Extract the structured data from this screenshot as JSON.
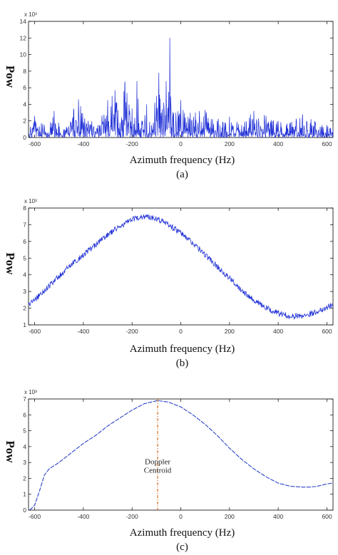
{
  "chart_data": [
    {
      "type": "line",
      "panel": "(a)",
      "xlabel": "Azimuth frequency (Hz)",
      "ylabel": "Pow",
      "y_exponent_label": "x 10³",
      "xlim": [
        -625,
        625
      ],
      "ylim": [
        0,
        14
      ],
      "xticks": [
        -600,
        -400,
        -200,
        0,
        200,
        400,
        600
      ],
      "yticks": [
        0,
        2,
        4,
        6,
        8,
        10,
        12,
        14
      ],
      "grid": false,
      "series": [
        {
          "color": "#1f2fd6",
          "description": "noisy spectrum, values approx.",
          "x": [
            -625,
            -600,
            -560,
            -520,
            -480,
            -440,
            -420,
            -380,
            -340,
            -300,
            -270,
            -250,
            -230,
            -200,
            -180,
            -160,
            -140,
            -120,
            -100,
            -90,
            -80,
            -70,
            -60,
            -50,
            -45,
            -40,
            -20,
            0,
            30,
            60,
            100,
            150,
            200,
            250,
            300,
            350,
            400,
            450,
            500,
            550,
            600,
            625
          ],
          "y": [
            0.5,
            2.6,
            1.5,
            3.2,
            1.0,
            3.5,
            4.6,
            2.0,
            1.5,
            4.5,
            5.7,
            1.8,
            6.5,
            3.5,
            6.8,
            2.0,
            4.0,
            1.5,
            5.0,
            7.8,
            3.0,
            4.2,
            6.8,
            5.5,
            12.0,
            3.5,
            3.0,
            4.5,
            2.5,
            3.0,
            3.3,
            2.0,
            2.5,
            1.5,
            3.2,
            2.6,
            2.0,
            1.8,
            2.8,
            2.0,
            1.5,
            1.0
          ]
        }
      ]
    },
    {
      "type": "line",
      "panel": "(b)",
      "xlabel": "Azimuth frequency (Hz)",
      "ylabel": "Pow",
      "y_exponent_label": "x 10³",
      "xlim": [
        -625,
        625
      ],
      "ylim": [
        1,
        8
      ],
      "xticks": [
        -600,
        -400,
        -200,
        0,
        200,
        400,
        600
      ],
      "yticks": [
        1,
        2,
        3,
        4,
        5,
        6,
        7,
        8
      ],
      "grid": false,
      "series": [
        {
          "color": "#1f2fd6",
          "x": [
            -625,
            -600,
            -550,
            -500,
            -450,
            -400,
            -350,
            -300,
            -250,
            -200,
            -150,
            -100,
            -50,
            0,
            50,
            100,
            150,
            200,
            250,
            300,
            350,
            400,
            450,
            500,
            550,
            600,
            625
          ],
          "y": [
            2.2,
            2.5,
            3.2,
            3.9,
            4.6,
            5.2,
            5.8,
            6.4,
            6.9,
            7.3,
            7.5,
            7.4,
            7.0,
            6.5,
            5.9,
            5.2,
            4.5,
            3.8,
            3.1,
            2.5,
            2.0,
            1.7,
            1.5,
            1.55,
            1.75,
            2.05,
            2.2
          ]
        }
      ]
    },
    {
      "type": "line",
      "panel": "(c)",
      "xlabel": "Azimuth frequency (Hz)",
      "ylabel": "Pow",
      "y_exponent_label": "x 10³",
      "xlim": [
        -625,
        625
      ],
      "ylim": [
        0,
        7
      ],
      "xticks": [
        -600,
        -400,
        -200,
        0,
        200,
        400,
        600
      ],
      "yticks": [
        0,
        1,
        2,
        3,
        4,
        5,
        6,
        7
      ],
      "grid": false,
      "annotation": {
        "text_lines": [
          "Doppler",
          "Centroid"
        ],
        "x": -95,
        "line_color": "#d2691e"
      },
      "series": [
        {
          "color": "#2a44c8",
          "x": [
            -620,
            -600,
            -580,
            -560,
            -540,
            -500,
            -450,
            -400,
            -350,
            -300,
            -250,
            -200,
            -150,
            -95,
            -50,
            0,
            50,
            100,
            150,
            200,
            250,
            300,
            350,
            400,
            450,
            500,
            530,
            560,
            600,
            625
          ],
          "y": [
            0.0,
            0.3,
            1.2,
            2.2,
            2.6,
            3.0,
            3.6,
            4.2,
            4.7,
            5.3,
            5.8,
            6.3,
            6.7,
            6.9,
            6.8,
            6.5,
            6.0,
            5.4,
            4.7,
            3.9,
            3.2,
            2.6,
            2.1,
            1.7,
            1.5,
            1.45,
            1.45,
            1.5,
            1.65,
            1.7
          ]
        }
      ]
    }
  ]
}
